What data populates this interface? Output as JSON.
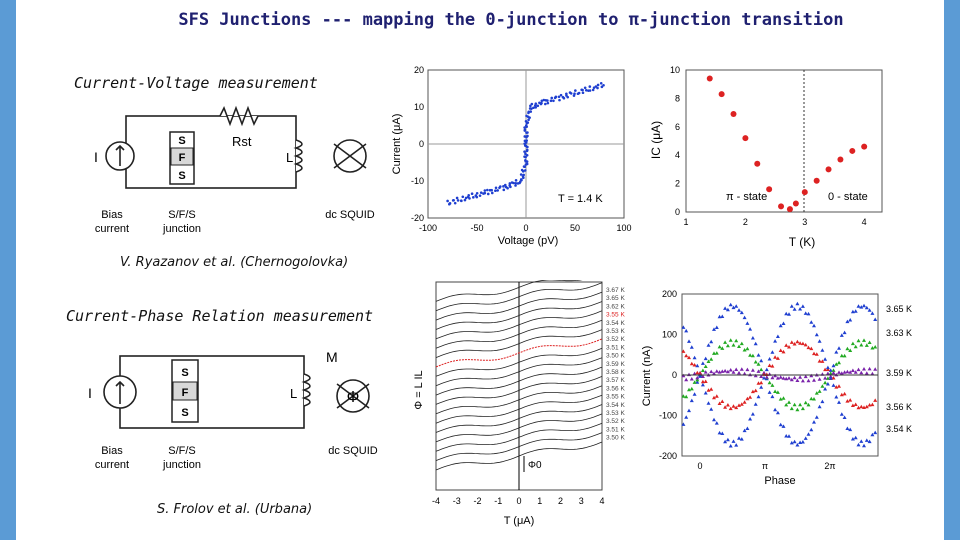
{
  "title": "SFS Junctions --- mapping the 0-junction to π-junction transition",
  "sections": {
    "iv": "Current-Voltage measurement",
    "cpr": "Current-Phase Relation measurement"
  },
  "credits": {
    "ryazanov": "V. Ryazanov et al. (Chernogolovka)",
    "frolov": "S. Frolov et al. (Urbana)"
  },
  "circuit1": {
    "I": "I",
    "S_top": "S",
    "F": "F",
    "S_bot": "S",
    "R": "Rst",
    "L": "L",
    "bias": "Bias\ncurrent",
    "sfs": "S/F/S\njunction",
    "squid": "dc SQUID"
  },
  "circuit2": {
    "I": "I",
    "S_top": "S",
    "F": "F",
    "S_bot": "S",
    "M": "M",
    "L": "L",
    "phi": "Φ",
    "bias": "Bias\ncurrent",
    "sfs": "S/F/S\njunction",
    "squid": "dc SQUID"
  },
  "colors": {
    "accent": "#5b9bd5",
    "blue": "#1f3fd0",
    "red": "#dd2222",
    "green": "#22aa22",
    "purple": "#7a22aa",
    "navy": "#1f2070"
  },
  "chart_data": [
    {
      "type": "scatter",
      "name": "iv-curve",
      "xlabel": "Voltage (pV)",
      "ylabel": "Current (μA)",
      "xlim": [
        -100,
        100
      ],
      "ylim": [
        -20,
        20
      ],
      "xticks": [
        "-100",
        "-50",
        "0",
        "50",
        "100"
      ],
      "yticks": [
        "20",
        "10",
        "0",
        "-10",
        "-20"
      ],
      "annotation": "T = 1.4 K",
      "x": [
        -80,
        -60,
        -40,
        -20,
        -5,
        0,
        0,
        0,
        5,
        20,
        40,
        60,
        80
      ],
      "y": [
        -16,
        -14.5,
        -13,
        -11.5,
        -10,
        -5,
        0,
        5,
        10,
        11.5,
        13,
        14.5,
        16
      ]
    },
    {
      "type": "scatter",
      "name": "ic-vs-t",
      "xlabel": "T (K)",
      "ylabel": "IC (μA)",
      "xlim": [
        1,
        4.3
      ],
      "ylim": [
        0,
        10
      ],
      "xticks": [
        "1",
        "2",
        "3",
        "4"
      ],
      "yticks": [
        "10",
        "8",
        "6",
        "4",
        "2",
        "0"
      ],
      "labels": [
        "π - state",
        "0 - state"
      ],
      "x": [
        1.4,
        1.6,
        1.8,
        2.0,
        2.2,
        2.4,
        2.6,
        2.75,
        2.85,
        3.0,
        3.2,
        3.4,
        3.6,
        3.8,
        4.0
      ],
      "y": [
        9.4,
        8.3,
        6.9,
        5.2,
        3.4,
        1.6,
        0.4,
        0.2,
        0.6,
        1.4,
        2.2,
        3.0,
        3.7,
        4.3,
        4.6
      ]
    },
    {
      "type": "line",
      "name": "cpr-stack",
      "xlabel": "T (μA)",
      "ylabel": "Φ = L IL",
      "xlim": [
        -4,
        4
      ],
      "xticks": [
        "-4",
        "-3",
        "-2",
        "-1",
        "0",
        "1",
        "2",
        "3",
        "4"
      ],
      "scale_label": "Φ0",
      "series": [
        {
          "name": "3.67 K"
        },
        {
          "name": "3.65 K"
        },
        {
          "name": "3.62 K"
        },
        {
          "name": "3.55 K"
        },
        {
          "name": "3.54 K"
        },
        {
          "name": "3.53 K"
        },
        {
          "name": "3.52 K"
        },
        {
          "name": "3.51 K"
        },
        {
          "name": "3.50 K"
        },
        {
          "name": "3.59 K"
        },
        {
          "name": "3.58 K"
        },
        {
          "name": "3.57 K"
        },
        {
          "name": "3.56 K"
        },
        {
          "name": "3.55 K"
        },
        {
          "name": "3.54 K"
        },
        {
          "name": "3.53 K"
        },
        {
          "name": "3.52 K"
        },
        {
          "name": "3.51 K"
        },
        {
          "name": "3.50 K"
        }
      ]
    },
    {
      "type": "scatter",
      "name": "current-vs-phase",
      "xlabel": "Phase",
      "ylabel": "Current (nA)",
      "ylim": [
        -200,
        200
      ],
      "xticks": [
        "0",
        "π",
        "2π"
      ],
      "yticks": [
        "200",
        "100",
        "0",
        "-100",
        "-200"
      ],
      "series": [
        {
          "name": "3.65 K",
          "color": "#1f3fd0",
          "amplitude": 170
        },
        {
          "name": "3.63 K",
          "color": "#22aa22",
          "amplitude": 80
        },
        {
          "name": "3.59 K",
          "color": "#7a22aa",
          "amplitude": 10
        },
        {
          "name": "3.56 K",
          "color": "#dd2222",
          "amplitude": -80
        },
        {
          "name": "3.54 K",
          "color": "#1f3fd0",
          "amplitude": -170
        }
      ]
    }
  ]
}
